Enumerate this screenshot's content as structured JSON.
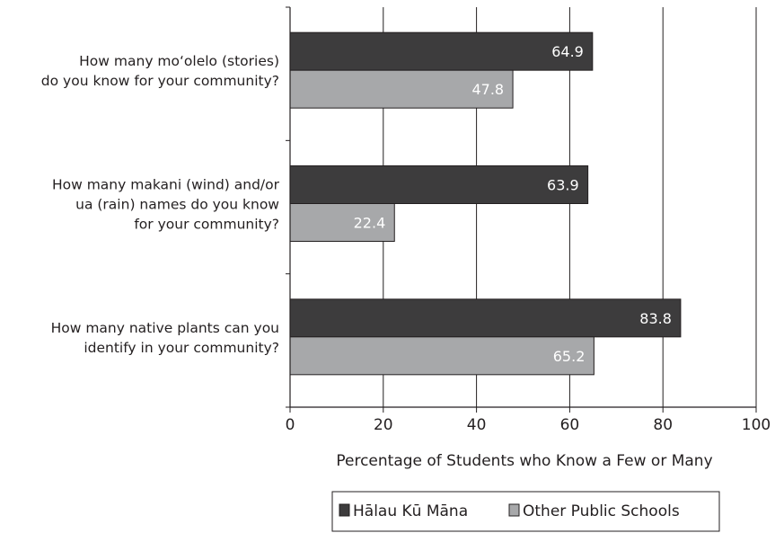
{
  "colors": {
    "series_dark": "#3d3c3d",
    "series_light": "#a7a8aa",
    "axis": "#231f20",
    "grid": "#231f20"
  },
  "chart_data": {
    "type": "bar",
    "orientation": "horizontal",
    "categories": [
      [
        "How many mo‘olelo (stories)",
        "do you know for your community?"
      ],
      [
        "How many makani (wind) and/or",
        "ua (rain) names do you know",
        "for your community?"
      ],
      [
        "How many native plants can you",
        "identify in your community?"
      ]
    ],
    "series": [
      {
        "name": "Hālau Kū Māna",
        "values": [
          64.9,
          63.9,
          83.8
        ]
      },
      {
        "name": "Other Public Schools",
        "values": [
          47.8,
          22.4,
          65.2
        ]
      }
    ],
    "xlabel": "Percentage of Students who Know a Few or Many",
    "xlim": [
      0,
      100
    ],
    "xticks": [
      0,
      20,
      40,
      60,
      80,
      100
    ],
    "grid": "vertical",
    "legend_position": "bottom"
  }
}
